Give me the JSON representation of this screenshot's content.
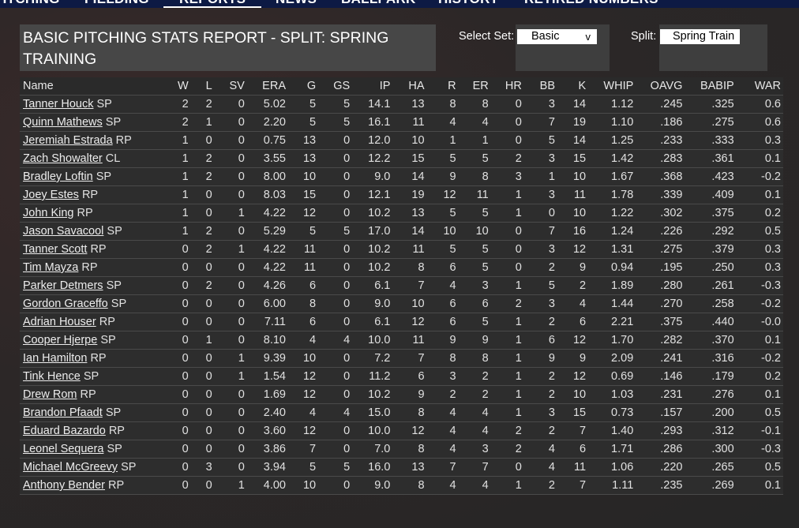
{
  "nav": {
    "tabs": [
      {
        "label": "PITCHING",
        "active": false
      },
      {
        "label": "FIELDING",
        "active": false
      },
      {
        "label": "REPORTS",
        "active": true
      },
      {
        "label": "NEWS",
        "active": false
      },
      {
        "label": "BALLPARK",
        "active": false
      },
      {
        "label": "HISTORY",
        "active": false
      },
      {
        "label": "RETIRED NUMBERS",
        "active": false
      }
    ]
  },
  "report": {
    "title": "BASIC PITCHING STATS REPORT - SPLIT: SPRING TRAINING",
    "select_set_label": "Select Set:",
    "select_set_value": "Basic",
    "split_label": "Split:",
    "split_value": "Spring Train"
  },
  "table": {
    "columns": [
      "Name",
      "W",
      "L",
      "SV",
      "ERA",
      "G",
      "GS",
      "IP",
      "HA",
      "R",
      "ER",
      "HR",
      "BB",
      "K",
      "WHIP",
      "OAVG",
      "BABIP",
      "WAR"
    ],
    "rows": [
      {
        "name": "Tanner Houck",
        "pos": "SP",
        "stats": [
          "2",
          "2",
          "0",
          "5.02",
          "5",
          "5",
          "14.1",
          "13",
          "8",
          "8",
          "0",
          "3",
          "14",
          "1.12",
          ".245",
          ".325",
          "0.6"
        ]
      },
      {
        "name": "Quinn Mathews",
        "pos": "SP",
        "stats": [
          "2",
          "1",
          "0",
          "2.20",
          "5",
          "5",
          "16.1",
          "11",
          "4",
          "4",
          "0",
          "7",
          "19",
          "1.10",
          ".186",
          ".275",
          "0.6"
        ]
      },
      {
        "name": "Jeremiah Estrada",
        "pos": "RP",
        "stats": [
          "1",
          "0",
          "0",
          "0.75",
          "13",
          "0",
          "12.0",
          "10",
          "1",
          "1",
          "0",
          "5",
          "14",
          "1.25",
          ".233",
          ".333",
          "0.3"
        ]
      },
      {
        "name": "Zach Showalter",
        "pos": "CL",
        "stats": [
          "1",
          "2",
          "0",
          "3.55",
          "13",
          "0",
          "12.2",
          "15",
          "5",
          "5",
          "2",
          "3",
          "15",
          "1.42",
          ".283",
          ".361",
          "0.1"
        ]
      },
      {
        "name": "Bradley Loftin",
        "pos": "SP",
        "stats": [
          "1",
          "2",
          "0",
          "8.00",
          "10",
          "0",
          "9.0",
          "14",
          "9",
          "8",
          "3",
          "1",
          "10",
          "1.67",
          ".368",
          ".423",
          "-0.2"
        ]
      },
      {
        "name": "Joey Estes",
        "pos": "RP",
        "stats": [
          "1",
          "0",
          "0",
          "8.03",
          "15",
          "0",
          "12.1",
          "19",
          "12",
          "11",
          "1",
          "3",
          "11",
          "1.78",
          ".339",
          ".409",
          "0.1"
        ]
      },
      {
        "name": "John King",
        "pos": "RP",
        "stats": [
          "1",
          "0",
          "1",
          "4.22",
          "12",
          "0",
          "10.2",
          "13",
          "5",
          "5",
          "1",
          "0",
          "10",
          "1.22",
          ".302",
          ".375",
          "0.2"
        ]
      },
      {
        "name": "Jason Savacool",
        "pos": "SP",
        "stats": [
          "1",
          "2",
          "0",
          "5.29",
          "5",
          "5",
          "17.0",
          "14",
          "10",
          "10",
          "0",
          "7",
          "16",
          "1.24",
          ".226",
          ".292",
          "0.5"
        ]
      },
      {
        "name": "Tanner Scott",
        "pos": "RP",
        "stats": [
          "0",
          "2",
          "1",
          "4.22",
          "11",
          "0",
          "10.2",
          "11",
          "5",
          "5",
          "0",
          "3",
          "12",
          "1.31",
          ".275",
          ".379",
          "0.3"
        ]
      },
      {
        "name": "Tim Mayza",
        "pos": "RP",
        "stats": [
          "0",
          "0",
          "0",
          "4.22",
          "11",
          "0",
          "10.2",
          "8",
          "6",
          "5",
          "0",
          "2",
          "9",
          "0.94",
          ".195",
          ".250",
          "0.3"
        ]
      },
      {
        "name": "Parker Detmers",
        "pos": "SP",
        "stats": [
          "0",
          "2",
          "0",
          "4.26",
          "6",
          "0",
          "6.1",
          "7",
          "4",
          "3",
          "1",
          "5",
          "2",
          "1.89",
          ".280",
          ".261",
          "-0.3"
        ]
      },
      {
        "name": "Gordon Graceffo",
        "pos": "SP",
        "stats": [
          "0",
          "0",
          "0",
          "6.00",
          "8",
          "0",
          "9.0",
          "10",
          "6",
          "6",
          "2",
          "3",
          "4",
          "1.44",
          ".270",
          ".258",
          "-0.2"
        ]
      },
      {
        "name": "Adrian Houser",
        "pos": "RP",
        "stats": [
          "0",
          "0",
          "0",
          "7.11",
          "6",
          "0",
          "6.1",
          "12",
          "6",
          "5",
          "1",
          "2",
          "6",
          "2.21",
          ".375",
          ".440",
          "-0.0"
        ]
      },
      {
        "name": "Cooper Hjerpe",
        "pos": "SP",
        "stats": [
          "0",
          "1",
          "0",
          "8.10",
          "4",
          "4",
          "10.0",
          "11",
          "9",
          "9",
          "1",
          "6",
          "12",
          "1.70",
          ".282",
          ".370",
          "0.1"
        ]
      },
      {
        "name": "Ian Hamilton",
        "pos": "RP",
        "stats": [
          "0",
          "0",
          "1",
          "9.39",
          "10",
          "0",
          "7.2",
          "7",
          "8",
          "8",
          "1",
          "9",
          "9",
          "2.09",
          ".241",
          ".316",
          "-0.2"
        ]
      },
      {
        "name": "Tink Hence",
        "pos": "SP",
        "stats": [
          "0",
          "0",
          "1",
          "1.54",
          "12",
          "0",
          "11.2",
          "6",
          "3",
          "2",
          "1",
          "2",
          "12",
          "0.69",
          ".146",
          ".179",
          "0.2"
        ]
      },
      {
        "name": "Drew Rom",
        "pos": "RP",
        "stats": [
          "0",
          "0",
          "0",
          "1.69",
          "12",
          "0",
          "10.2",
          "9",
          "2",
          "2",
          "1",
          "2",
          "10",
          "1.03",
          ".231",
          ".276",
          "0.1"
        ]
      },
      {
        "name": "Brandon Pfaadt",
        "pos": "SP",
        "stats": [
          "0",
          "0",
          "0",
          "2.40",
          "4",
          "4",
          "15.0",
          "8",
          "4",
          "4",
          "1",
          "3",
          "15",
          "0.73",
          ".157",
          ".200",
          "0.5"
        ]
      },
      {
        "name": "Eduard Bazardo",
        "pos": "RP",
        "stats": [
          "0",
          "0",
          "0",
          "3.60",
          "12",
          "0",
          "10.0",
          "12",
          "4",
          "4",
          "2",
          "2",
          "7",
          "1.40",
          ".293",
          ".312",
          "-0.1"
        ]
      },
      {
        "name": "Leonel Sequera",
        "pos": "SP",
        "stats": [
          "0",
          "0",
          "0",
          "3.86",
          "7",
          "0",
          "7.0",
          "8",
          "4",
          "3",
          "2",
          "4",
          "6",
          "1.71",
          ".286",
          ".300",
          "-0.3"
        ]
      },
      {
        "name": "Michael McGreevy",
        "pos": "SP",
        "stats": [
          "0",
          "3",
          "0",
          "3.94",
          "5",
          "5",
          "16.0",
          "13",
          "7",
          "7",
          "0",
          "4",
          "11",
          "1.06",
          ".220",
          ".265",
          "0.5"
        ]
      },
      {
        "name": "Anthony Bender",
        "pos": "RP",
        "stats": [
          "0",
          "0",
          "1",
          "4.00",
          "10",
          "0",
          "9.0",
          "8",
          "4",
          "4",
          "1",
          "2",
          "7",
          "1.11",
          ".235",
          ".269",
          "0.1"
        ]
      }
    ]
  }
}
